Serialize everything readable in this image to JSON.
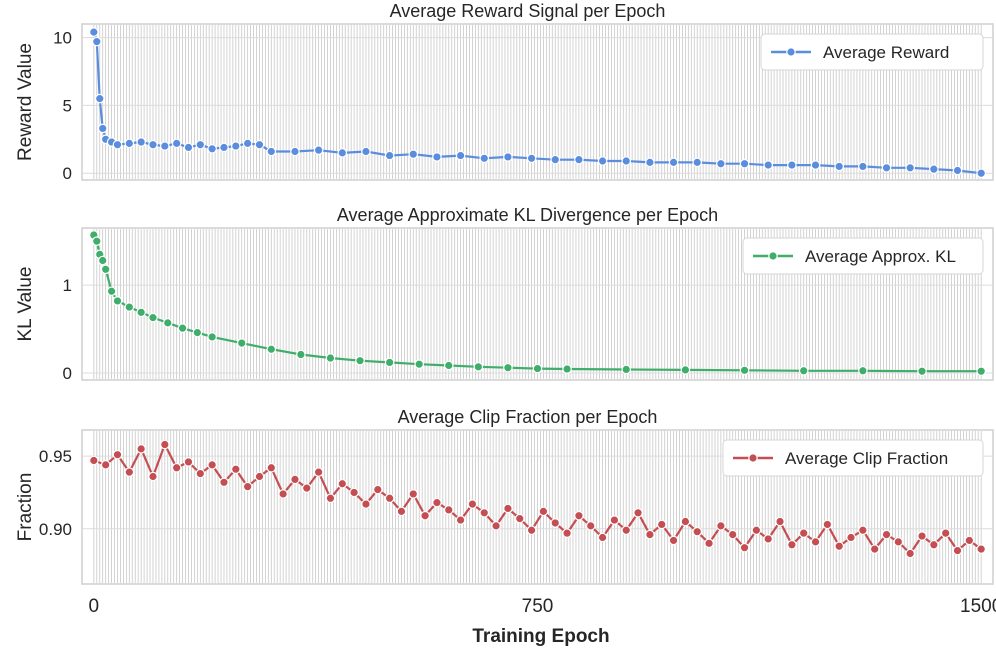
{
  "chart_data": [
    {
      "type": "line",
      "title": "Average Reward Signal per Epoch",
      "xlabel": "Training Epoch",
      "ylabel": "Reward Value",
      "xlim": [
        -20,
        1520
      ],
      "ylim": [
        -0.5,
        11
      ],
      "xticks": [
        0,
        750,
        1500
      ],
      "yticks": [
        0,
        5,
        10
      ],
      "ytick_labels": [
        "0",
        "5",
        "10"
      ],
      "legend": "top-right",
      "series": [
        {
          "name": "Average Reward",
          "color": "#5b8ddf",
          "marker": "circle",
          "x": [
            0,
            5,
            10,
            15,
            20,
            30,
            40,
            60,
            80,
            100,
            120,
            140,
            160,
            180,
            200,
            220,
            240,
            260,
            280,
            300,
            340,
            380,
            420,
            460,
            500,
            540,
            580,
            620,
            660,
            700,
            740,
            780,
            820,
            860,
            900,
            940,
            980,
            1020,
            1060,
            1100,
            1140,
            1180,
            1220,
            1260,
            1300,
            1340,
            1380,
            1420,
            1460,
            1500
          ],
          "values": [
            10.4,
            9.7,
            5.5,
            3.3,
            2.5,
            2.3,
            2.1,
            2.2,
            2.3,
            2.1,
            2.0,
            2.2,
            1.9,
            2.1,
            1.8,
            1.9,
            2.0,
            2.2,
            2.1,
            1.6,
            1.6,
            1.7,
            1.5,
            1.6,
            1.3,
            1.4,
            1.2,
            1.3,
            1.1,
            1.2,
            1.1,
            1.0,
            1.0,
            0.9,
            0.9,
            0.8,
            0.8,
            0.8,
            0.7,
            0.7,
            0.6,
            0.6,
            0.6,
            0.5,
            0.5,
            0.4,
            0.4,
            0.3,
            0.2,
            0.0
          ]
        }
      ]
    },
    {
      "type": "line",
      "title": "Average Approximate KL Divergence per Epoch",
      "xlabel": "Training Epoch",
      "ylabel": "KL Value",
      "xlim": [
        -20,
        1520
      ],
      "ylim": [
        -0.08,
        1.65
      ],
      "xticks": [
        0,
        750,
        1500
      ],
      "yticks": [
        0,
        1
      ],
      "ytick_labels": [
        "0",
        "1"
      ],
      "legend": "top-right",
      "series": [
        {
          "name": "Average Approx. KL",
          "color": "#3fae6a",
          "marker": "circle",
          "x": [
            0,
            5,
            10,
            15,
            20,
            30,
            40,
            60,
            80,
            100,
            125,
            150,
            175,
            200,
            250,
            300,
            350,
            400,
            450,
            500,
            550,
            600,
            650,
            700,
            750,
            800,
            900,
            1000,
            1100,
            1200,
            1300,
            1400,
            1500
          ],
          "values": [
            1.57,
            1.5,
            1.35,
            1.28,
            1.18,
            0.93,
            0.82,
            0.75,
            0.69,
            0.63,
            0.57,
            0.51,
            0.46,
            0.41,
            0.34,
            0.27,
            0.21,
            0.17,
            0.14,
            0.12,
            0.1,
            0.085,
            0.07,
            0.06,
            0.05,
            0.045,
            0.04,
            0.035,
            0.03,
            0.025,
            0.025,
            0.02,
            0.02
          ]
        }
      ]
    },
    {
      "type": "line",
      "title": "Average Clip Fraction per Epoch",
      "xlabel": "Training Epoch",
      "ylabel": "Fraction",
      "xlim": [
        -20,
        1520
      ],
      "ylim": [
        0.862,
        0.968
      ],
      "xticks": [
        0,
        750,
        1500
      ],
      "yticks": [
        0.9,
        0.95
      ],
      "ytick_labels": [
        "0.90",
        "0.95"
      ],
      "legend": "top-right",
      "series": [
        {
          "name": "Average Clip Fraction",
          "color": "#c44e52",
          "marker": "circle",
          "x": [
            0,
            20,
            40,
            60,
            80,
            100,
            120,
            140,
            160,
            180,
            200,
            220,
            240,
            260,
            280,
            300,
            320,
            340,
            360,
            380,
            400,
            420,
            440,
            460,
            480,
            500,
            520,
            540,
            560,
            580,
            600,
            620,
            640,
            660,
            680,
            700,
            720,
            740,
            760,
            780,
            800,
            820,
            840,
            860,
            880,
            900,
            920,
            940,
            960,
            980,
            1000,
            1020,
            1040,
            1060,
            1080,
            1100,
            1120,
            1140,
            1160,
            1180,
            1200,
            1220,
            1240,
            1260,
            1280,
            1300,
            1320,
            1340,
            1360,
            1380,
            1400,
            1420,
            1440,
            1460,
            1480,
            1500
          ],
          "values": [
            0.947,
            0.944,
            0.951,
            0.939,
            0.955,
            0.936,
            0.958,
            0.942,
            0.946,
            0.938,
            0.944,
            0.932,
            0.941,
            0.929,
            0.936,
            0.942,
            0.924,
            0.934,
            0.928,
            0.939,
            0.921,
            0.931,
            0.925,
            0.917,
            0.927,
            0.921,
            0.912,
            0.924,
            0.909,
            0.918,
            0.913,
            0.906,
            0.917,
            0.911,
            0.902,
            0.914,
            0.907,
            0.899,
            0.912,
            0.904,
            0.897,
            0.909,
            0.902,
            0.894,
            0.906,
            0.899,
            0.911,
            0.896,
            0.903,
            0.892,
            0.905,
            0.898,
            0.89,
            0.902,
            0.896,
            0.887,
            0.899,
            0.893,
            0.905,
            0.889,
            0.897,
            0.891,
            0.903,
            0.888,
            0.894,
            0.899,
            0.886,
            0.896,
            0.891,
            0.883,
            0.895,
            0.889,
            0.897,
            0.885,
            0.892,
            0.886
          ]
        }
      ]
    }
  ]
}
